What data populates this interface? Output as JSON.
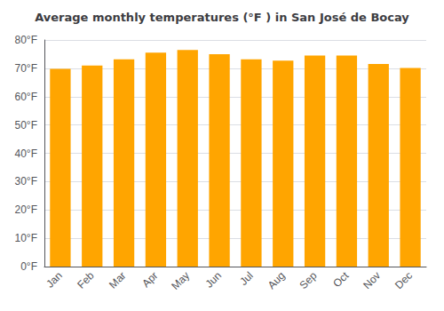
{
  "chart_data": {
    "type": "bar",
    "title": "Average monthly temperatures (°F ) in San José de Bocay",
    "categories": [
      "Jan",
      "Feb",
      "Mar",
      "Apr",
      "May",
      "Jun",
      "Jul",
      "Aug",
      "Sep",
      "Oct",
      "Nov",
      "Dec"
    ],
    "values": [
      69.8,
      71.0,
      73.2,
      75.5,
      76.5,
      75.0,
      73.2,
      72.7,
      74.5,
      74.5,
      71.5,
      70.1
    ],
    "color": "#FFA500",
    "ylim": [
      0,
      80
    ],
    "yticks": [
      {
        "value": 0,
        "label": "0°F"
      },
      {
        "value": 10,
        "label": "10°F"
      },
      {
        "value": 20,
        "label": "20°F"
      },
      {
        "value": 30,
        "label": "30°F"
      },
      {
        "value": 40,
        "label": "40°F"
      },
      {
        "value": 50,
        "label": "50°F"
      },
      {
        "value": 60,
        "label": "60°F"
      },
      {
        "value": 70,
        "label": "70°F"
      },
      {
        "value": 80,
        "label": "80°F"
      }
    ],
    "grid": true
  }
}
